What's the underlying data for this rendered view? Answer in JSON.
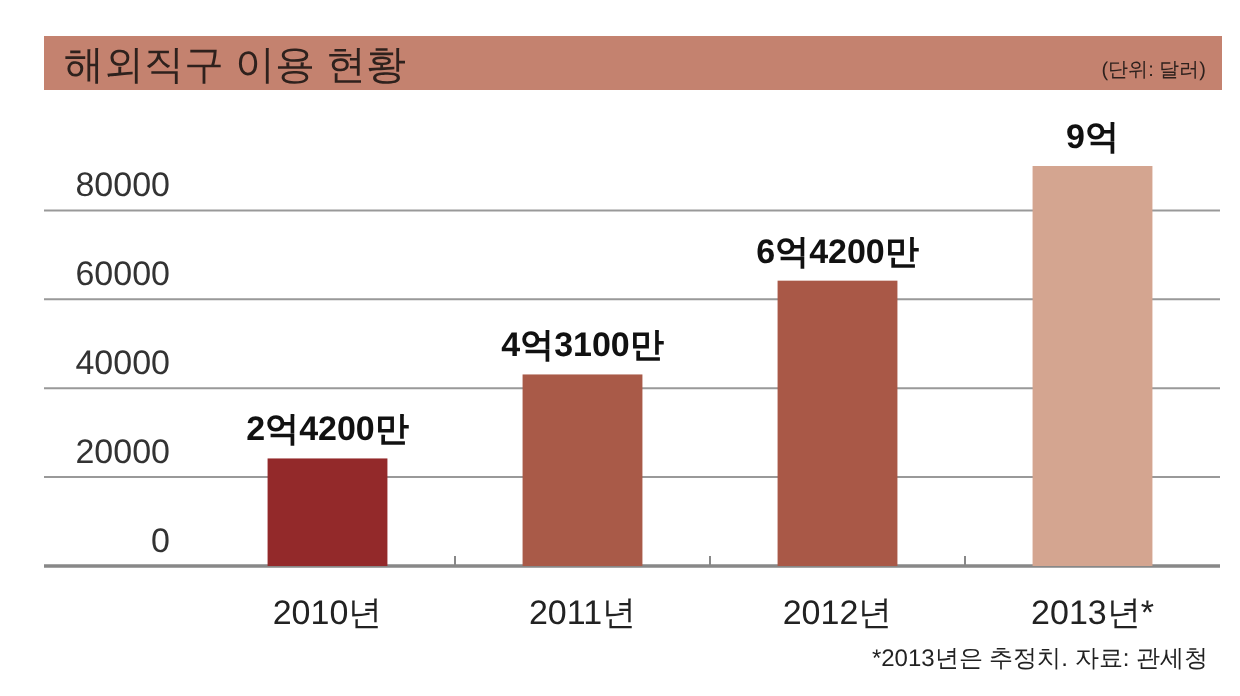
{
  "chart_data": {
    "type": "bar",
    "title": "해외직구 이용 현황",
    "subtitle": "(단위: 달러)",
    "categories": [
      "2010년",
      "2011년",
      "2012년",
      "2013년*"
    ],
    "values": [
      24200,
      43100,
      64200,
      90000
    ],
    "colors": [
      "#93292a",
      "#a95a48",
      "#a95847",
      "#d4a590"
    ],
    "ylim": [
      0,
      90000
    ],
    "yticks": [
      0,
      20000,
      40000,
      60000,
      80000
    ],
    "grid": "y",
    "annotations": [
      {
        "text": "2억4200만",
        "x": "2010년",
        "y": 24200
      },
      {
        "text": "4억3100만",
        "x": "2011년",
        "y": 43100
      },
      {
        "text": "6억4200만",
        "x": "2012년",
        "y": 64200
      },
      {
        "text": "9억",
        "x": "2013년*",
        "y": 90000
      },
      "*2013년은 추정치. 자료: 관세청"
    ]
  }
}
